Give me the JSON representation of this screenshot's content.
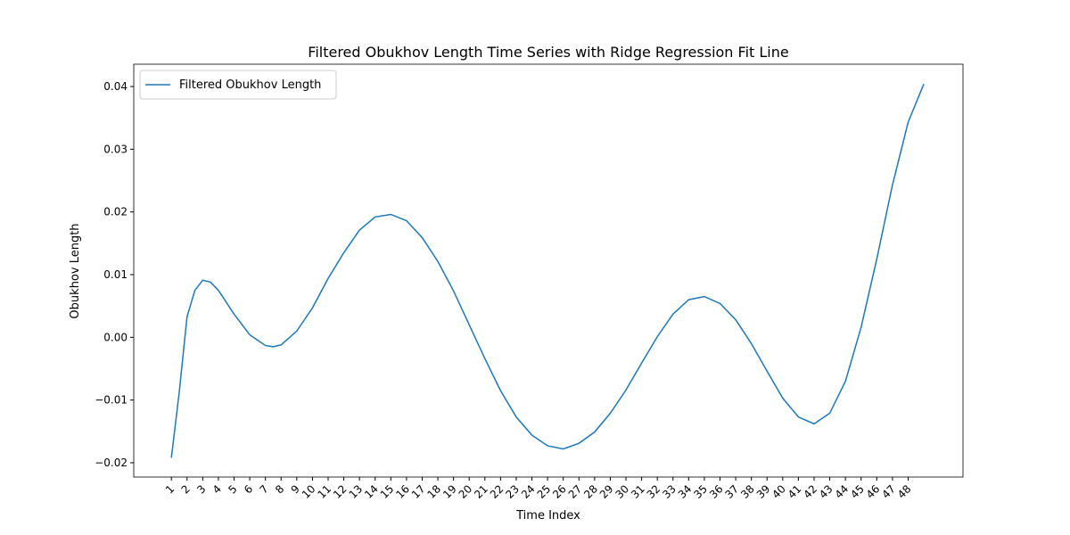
{
  "chart_data": {
    "type": "line",
    "title": "Filtered Obukhov Length Time Series with Ridge Regression Fit Line",
    "x_label": "Time Index",
    "y_label": "Obukhov Length",
    "x": [
      1,
      1.5,
      2,
      2.5,
      3,
      3.5,
      4,
      5,
      6,
      7,
      7.5,
      8,
      9,
      10,
      11,
      12,
      13,
      14,
      15,
      16,
      17,
      18,
      19,
      20,
      21,
      22,
      23,
      24,
      25,
      26,
      27,
      28,
      29,
      30,
      31,
      32,
      33,
      34,
      35,
      36,
      37,
      38,
      39,
      40,
      41,
      42,
      43,
      44,
      45,
      46,
      47,
      48,
      49
    ],
    "series": [
      {
        "name": "Filtered Obukhov Length",
        "color": "#1f77b4",
        "values": [
          -0.0192,
          -0.0088,
          0.0033,
          0.0075,
          0.0091,
          0.0088,
          0.0075,
          0.0037,
          0.0004,
          -0.0013,
          -0.0015,
          -0.0012,
          0.001,
          0.0047,
          0.0094,
          0.0135,
          0.0171,
          0.0192,
          0.0196,
          0.0186,
          0.0159,
          0.0121,
          0.0074,
          0.002,
          -0.0034,
          -0.0085,
          -0.0127,
          -0.0156,
          -0.0173,
          -0.0178,
          -0.0169,
          -0.0151,
          -0.0121,
          -0.0084,
          -0.0041,
          0.0001,
          0.0037,
          0.006,
          0.0065,
          0.0054,
          0.0028,
          -0.001,
          -0.0054,
          -0.0097,
          -0.0127,
          -0.0138,
          -0.0121,
          -0.007,
          0.0016,
          0.0125,
          0.0243,
          0.0343,
          0.0404
        ]
      }
    ],
    "xlim": [
      -1.4,
      51.5
    ],
    "xticks": [
      1,
      2,
      3,
      4,
      5,
      6,
      7,
      8,
      9,
      10,
      11,
      12,
      13,
      14,
      15,
      16,
      17,
      18,
      19,
      20,
      21,
      22,
      23,
      24,
      25,
      26,
      27,
      28,
      29,
      30,
      31,
      32,
      33,
      34,
      35,
      36,
      37,
      38,
      39,
      40,
      41,
      42,
      43,
      44,
      45,
      46,
      47,
      48
    ],
    "ylim": [
      -0.02228,
      0.04356
    ],
    "yticks": [
      {
        "value": -0.02,
        "label": "−0.02"
      },
      {
        "value": -0.01,
        "label": "−0.01"
      },
      {
        "value": 0,
        "label": "0.00"
      },
      0.01,
      0.02,
      0.03,
      0.04
    ],
    "legend": "upper left",
    "grid": false
  }
}
